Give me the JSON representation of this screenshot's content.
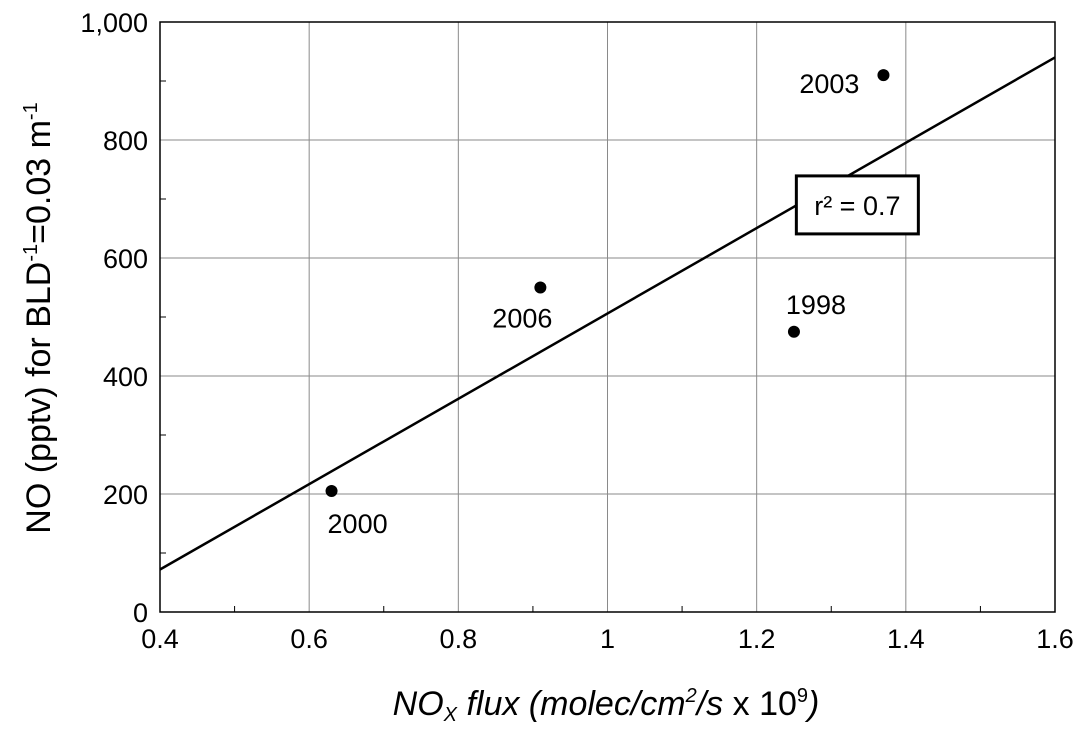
{
  "chart_data": {
    "type": "scatter",
    "xlabel_parts": {
      "base": "NO",
      "sub": "X",
      "mid": " flux (molec/cm",
      "sup1": "2",
      "mid2": "/s",
      "tail": " x 10",
      "sup2": "9",
      "close": ")"
    },
    "ylabel_parts": {
      "a": "NO (pptv) for BLD",
      "sup1": "-1",
      "b": "=0.03 m",
      "sup2": "-1"
    },
    "xlim": [
      0.4,
      1.6
    ],
    "ylim": [
      0,
      1000
    ],
    "xticks": [
      0.4,
      0.6,
      0.8,
      1.0,
      1.2,
      1.4,
      1.6
    ],
    "xtick_labels": [
      "0.4",
      "0.6",
      "0.8",
      "1",
      "1.2",
      "1.4",
      "1.6"
    ],
    "yticks": [
      0,
      200,
      400,
      600,
      800,
      1000
    ],
    "ytick_labels": [
      "0",
      "200",
      "400",
      "600",
      "800",
      "1,000"
    ],
    "grid": true,
    "points": [
      {
        "x": 0.63,
        "y": 205,
        "label": "2000",
        "label_pos": "below-right"
      },
      {
        "x": 0.91,
        "y": 550,
        "label": "2006",
        "label_pos": "below-left"
      },
      {
        "x": 1.25,
        "y": 475,
        "label": "1998",
        "label_pos": "above"
      },
      {
        "x": 1.37,
        "y": 910,
        "label": "2003",
        "label_pos": "left"
      }
    ],
    "fit_line": {
      "x": [
        0.4,
        1.6
      ],
      "y": [
        72,
        940
      ]
    },
    "annotation": {
      "text": "r² = 0.7",
      "x": 1.335,
      "y": 690
    }
  }
}
